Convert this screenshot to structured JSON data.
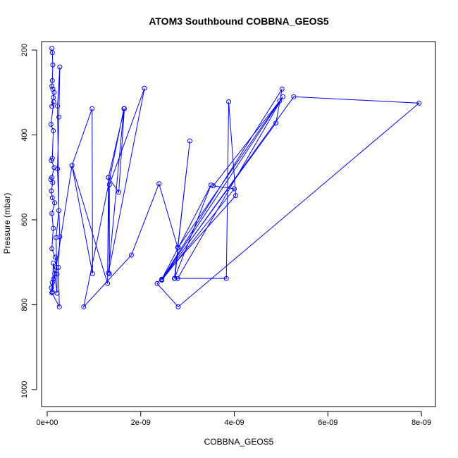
{
  "chart_data": {
    "type": "line",
    "title": "ATOM3 Southbound COBBNA_GEOS5",
    "xlabel": "COBBNA_GEOS5",
    "ylabel": "Pressure (mbar)",
    "xlim": [
      -1.2e-10,
      8.3e-09
    ],
    "ylim": [
      1040,
      180
    ],
    "y_reversed": true,
    "grid": false,
    "marker": "open-circle",
    "colors": {
      "series": "#0000ff",
      "axis": "#000000"
    },
    "x_ticks": [
      {
        "value": 0,
        "label": "0e+00"
      },
      {
        "value": 2e-09,
        "label": "2e-09"
      },
      {
        "value": 4e-09,
        "label": "4e-09"
      },
      {
        "value": 6e-09,
        "label": "6e-09"
      },
      {
        "value": 8e-09,
        "label": "8e-09"
      }
    ],
    "y_ticks": [
      {
        "value": 200,
        "label": "200"
      },
      {
        "value": 400,
        "label": "400"
      },
      {
        "value": 600,
        "label": "600"
      },
      {
        "value": 800,
        "label": "800"
      },
      {
        "value": 1000,
        "label": "1000"
      }
    ],
    "series": [
      {
        "points": [
          [
            1e-10,
            196
          ],
          [
            1.1e-10,
            206
          ],
          [
            1.2e-10,
            235
          ],
          [
            1.1e-10,
            272
          ],
          [
            1e-10,
            285
          ],
          [
            1.2e-10,
            292
          ],
          [
            1.5e-10,
            300
          ],
          [
            1.3e-10,
            312
          ],
          [
            1e-10,
            333
          ],
          [
            1.4e-10,
            322
          ],
          [
            8e-11,
            375
          ],
          [
            1.3e-10,
            390
          ],
          [
            1.1e-10,
            455
          ],
          [
            9e-11,
            460
          ],
          [
            1.5e-10,
            477
          ],
          [
            1e-10,
            500
          ],
          [
            8e-11,
            505
          ],
          [
            1.2e-10,
            512
          ],
          [
            9e-11,
            532
          ],
          [
            1.1e-10,
            548
          ],
          [
            1.6e-10,
            560
          ],
          [
            1e-10,
            585
          ],
          [
            1.3e-10,
            620
          ],
          [
            1e-10,
            668
          ],
          [
            1.7e-10,
            688
          ],
          [
            2e-10,
            712
          ],
          [
            1.3e-10,
            740
          ],
          [
            1.1e-10,
            748
          ],
          [
            9e-11,
            760
          ],
          [
            1e-10,
            772
          ],
          [
            2.6e-10,
            805
          ],
          [
            2.4e-10,
            712
          ],
          [
            2.7e-10,
            640
          ],
          [
            2.2e-10,
            480
          ],
          [
            2.5e-10,
            358
          ],
          [
            2.7e-10,
            240
          ],
          [
            2.2e-10,
            332
          ],
          [
            2.5e-10,
            578
          ],
          [
            1.9e-10,
            642
          ],
          [
            2.1e-10,
            728
          ],
          [
            2.1e-10,
            773
          ],
          [
            1.6e-10,
            727
          ],
          [
            1.3e-10,
            702
          ],
          [
            1.1e-10,
            770
          ],
          [
            5.3e-10,
            472
          ],
          [
            9.7e-10,
            727
          ],
          [
            9.6e-10,
            338
          ],
          [
            5.3e-10,
            472
          ],
          [
            1.29e-09,
            750
          ],
          [
            1.31e-09,
            500
          ],
          [
            1.53e-09,
            535
          ],
          [
            1.65e-09,
            338
          ],
          [
            1.31e-09,
            500
          ],
          [
            1.33e-09,
            727
          ],
          [
            1.33e-09,
            517
          ],
          [
            2.08e-09,
            290
          ],
          [
            1.31e-09,
            725
          ],
          [
            1.64e-09,
            338
          ],
          [
            7.8e-10,
            805
          ],
          [
            1.8e-09,
            683
          ],
          [
            2.39e-09,
            515
          ],
          [
            2.79e-09,
            665
          ],
          [
            3.05e-09,
            414
          ],
          [
            2.72e-09,
            738
          ],
          [
            3.5e-09,
            518
          ],
          [
            2.45e-09,
            740
          ],
          [
            5.02e-09,
            292
          ],
          [
            4.89e-09,
            372
          ],
          [
            2.45e-09,
            741
          ],
          [
            5.04e-09,
            310
          ],
          [
            2.79e-09,
            738
          ],
          [
            3.83e-09,
            738
          ],
          [
            3.88e-09,
            322
          ],
          [
            4.03e-09,
            543
          ],
          [
            2.35e-09,
            750
          ],
          [
            2.8e-09,
            805
          ],
          [
            7.95e-09,
            325
          ],
          [
            5.27e-09,
            310
          ],
          [
            2.45e-09,
            742
          ],
          [
            4e-09,
            527
          ],
          [
            3.55e-09,
            520
          ],
          [
            4.97e-09,
            320
          ],
          [
            2.8e-09,
            665
          ],
          [
            2.73e-09,
            738
          ]
        ]
      }
    ]
  }
}
